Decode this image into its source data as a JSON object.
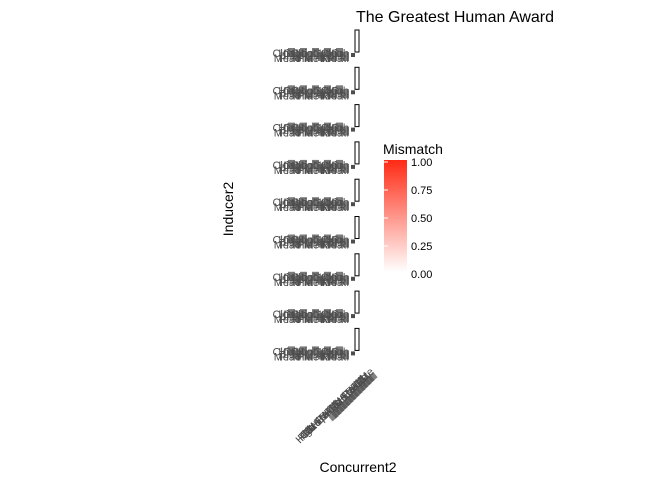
{
  "chart_data": {
    "type": "heatmap",
    "title": "The Greatest Human Award",
    "xlabel": "Concurrent2",
    "ylabel": "Inducer2",
    "facet_rows": 9,
    "y_tick_labels": [
      "High",
      "Pla",
      "Clo",
      "Ri",
      "Gr",
      "Me",
      "Lo",
      "Hi"
    ],
    "x_tick_labels": [
      "High",
      "Pla",
      "Clo",
      "Ri",
      "Gr",
      "Me",
      "Lo",
      "Hi",
      "Sp",
      "Ba",
      "Ta",
      "Wo"
    ],
    "legend": {
      "title": "Mismatch",
      "position": "right",
      "ticks": [
        "0.00",
        "0.25",
        "0.50",
        "0.75",
        "1.00"
      ],
      "range": [
        0,
        1
      ],
      "color_low": "#ffffff",
      "color_high": "#ff2a14"
    },
    "colors": {
      "text": "#4d4d4d",
      "title": "#000000",
      "tile_border": "#000000"
    }
  }
}
